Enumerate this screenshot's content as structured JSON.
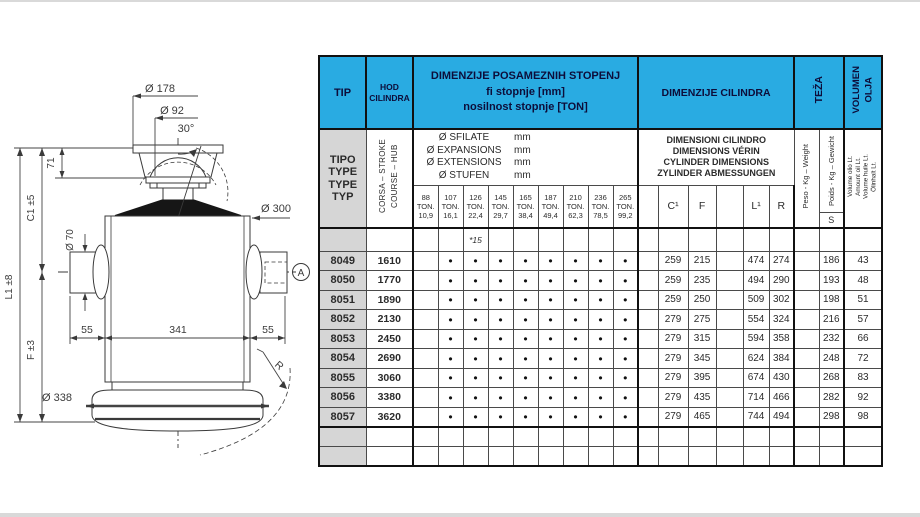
{
  "colors": {
    "header_blue": "#29abe2",
    "tip_gray": "#d6d6d6",
    "line": "#3a3a3a"
  },
  "drawing": {
    "labels": {
      "dia178": "Ø 178",
      "dia92": "Ø 92",
      "angle30": "30°",
      "h71": "71",
      "c1": "C1  ±5",
      "f": "F  ±3",
      "l1": "L1  ±8",
      "dia300": "Ø 300",
      "dia70": "Ø 70",
      "d55_left": "55",
      "d341": "341",
      "d55_right": "55",
      "dia338": "Ø 338",
      "radius": "R",
      "section_a": "A"
    }
  },
  "table": {
    "dot_char": "●",
    "header": {
      "tip": "TIP",
      "hod": "HOD\nCILINDRA",
      "stopenj": "DIMENZIJE POSAMEZNIH STOPENJ\nfi stopnje [mm]\nnosilnost stopnje [TON]",
      "cilindra": "DIMENZIJE CILINDRA",
      "teza": "TEŽA",
      "volumen": "VOLUMEN\nOLJA",
      "tipo": "TIPO\nTYPE\nTYPE\nTYP",
      "corsa": "CORSA – STROKE\nCOURSE – HUB",
      "sfilate": {
        "lines": [
          "Ø SFILATE",
          "Ø EXPANSIONS",
          "Ø EXTENSIONS",
          "Ø STUFEN"
        ],
        "unit": "mm"
      },
      "ton_cols": [
        "88\nTON.\n10,9",
        "107\nTON.\n16,1",
        "126\nTON.\n22,4",
        "145\nTON.\n29,7",
        "165\nTON.\n38,4",
        "187\nTON.\n49,4",
        "210\nTON.\n62,3",
        "236\nTON.\n78,5",
        "265\nTON.\n99,2"
      ],
      "note15": "*15",
      "dimensioni": "DIMENSIONI CILINDRO\nDIMENSIONS VÉRIN\nCYLINDER DIMENSIONS\nZYLINDER ABMESSUNGEN",
      "c1": "C¹",
      "f": "F",
      "l1": "L¹",
      "r": "R",
      "peso": "Peso - Kg – Weight",
      "poids": "Poids - Kg – Gewicht",
      "s": "S",
      "volume_lines": "Volume olio Lt.\nAmount oil Lt.\nVolume huile Lt.\nÖlinhalt Lt."
    },
    "rows": [
      {
        "tip": "8049",
        "hod": "1610",
        "c1": "259",
        "f": "215",
        "l1": "474",
        "r": "274",
        "s": "186",
        "vol": "43"
      },
      {
        "tip": "8050",
        "hod": "1770",
        "c1": "259",
        "f": "235",
        "l1": "494",
        "r": "290",
        "s": "193",
        "vol": "48"
      },
      {
        "tip": "8051",
        "hod": "1890",
        "c1": "259",
        "f": "250",
        "l1": "509",
        "r": "302",
        "s": "198",
        "vol": "51"
      },
      {
        "tip": "8052",
        "hod": "2130",
        "c1": "279",
        "f": "275",
        "l1": "554",
        "r": "324",
        "s": "216",
        "vol": "57"
      },
      {
        "tip": "8053",
        "hod": "2450",
        "c1": "279",
        "f": "315",
        "l1": "594",
        "r": "358",
        "s": "232",
        "vol": "66"
      },
      {
        "tip": "8054",
        "hod": "2690",
        "c1": "279",
        "f": "345",
        "l1": "624",
        "r": "384",
        "s": "248",
        "vol": "72"
      },
      {
        "tip": "8055",
        "hod": "3060",
        "c1": "279",
        "f": "395",
        "l1": "674",
        "r": "430",
        "s": "268",
        "vol": "83"
      },
      {
        "tip": "8056",
        "hod": "3380",
        "c1": "279",
        "f": "435",
        "l1": "714",
        "r": "466",
        "s": "282",
        "vol": "92"
      },
      {
        "tip": "8057",
        "hod": "3620",
        "c1": "279",
        "f": "465",
        "l1": "744",
        "r": "494",
        "s": "298",
        "vol": "98"
      }
    ],
    "empty_row_count": 2
  }
}
